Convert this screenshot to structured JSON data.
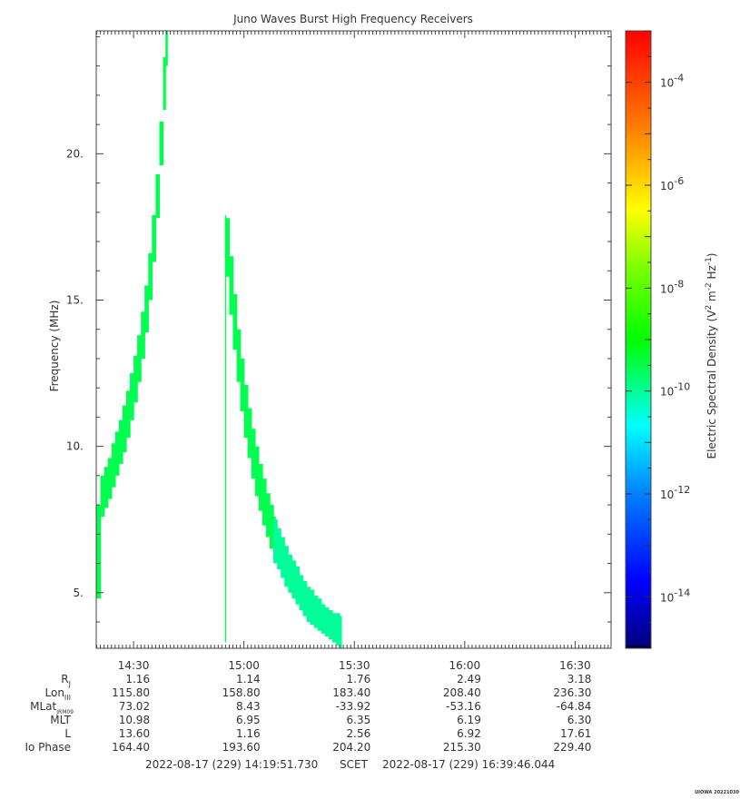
{
  "chart_data": {
    "type": "heatmap",
    "title": "Juno Waves Burst High Frequency Receivers",
    "ylabel": "Frequency (MHz)",
    "ylim": [
      3.1,
      24.2
    ],
    "yticks": [
      "5.",
      "10.",
      "15.",
      "20."
    ],
    "yticks_values": [
      5,
      10,
      15,
      20
    ],
    "xlim": [
      "14:19:51.730",
      "16:39:46.044"
    ],
    "xticks": [
      "14:30",
      "15:00",
      "15:30",
      "16:00",
      "16:30"
    ],
    "colorbar": {
      "label": "Electric Spectral Density (V² m⁻² Hz⁻¹)",
      "label_parts": [
        "Electric Spectral Density (V",
        "2",
        " m",
        "-2",
        " Hz",
        "-1",
        ")"
      ],
      "scale": "log",
      "range": [
        1e-15,
        0.001
      ],
      "ticks": [
        {
          "base": "10",
          "exp": "-4"
        },
        {
          "base": "10",
          "exp": "-6"
        },
        {
          "base": "10",
          "exp": "-8"
        },
        {
          "base": "10",
          "exp": "-10"
        },
        {
          "base": "10",
          "exp": "-12"
        },
        {
          "base": "10",
          "exp": "-14"
        }
      ],
      "tick_values": [
        0.0001,
        1e-06,
        1e-08,
        1e-10,
        1e-12,
        1e-14
      ]
    },
    "series": [
      {
        "color_value": 3e-10,
        "points": [
          {
            "t": "14:19:52",
            "f_low": 4.8,
            "f_high": 8.0
          },
          {
            "t": "14:21:00",
            "f_low": 7.6,
            "f_high": 9.0
          },
          {
            "t": "14:22:00",
            "f_low": 7.9,
            "f_high": 9.3
          },
          {
            "t": "14:23:00",
            "f_low": 8.2,
            "f_high": 9.6
          },
          {
            "t": "14:24:00",
            "f_low": 8.6,
            "f_high": 10.1
          },
          {
            "t": "14:25:00",
            "f_low": 9.0,
            "f_high": 10.5
          },
          {
            "t": "14:26:00",
            "f_low": 9.4,
            "f_high": 10.9
          },
          {
            "t": "14:27:00",
            "f_low": 9.8,
            "f_high": 11.4
          },
          {
            "t": "14:28:00",
            "f_low": 10.3,
            "f_high": 11.9
          },
          {
            "t": "14:29:00",
            "f_low": 10.9,
            "f_high": 12.5
          },
          {
            "t": "14:30:00",
            "f_low": 11.5,
            "f_high": 13.1
          },
          {
            "t": "14:31:00",
            "f_low": 12.2,
            "f_high": 13.8
          },
          {
            "t": "14:32:00",
            "f_low": 13.0,
            "f_high": 14.6
          },
          {
            "t": "14:33:00",
            "f_low": 13.9,
            "f_high": 15.5
          },
          {
            "t": "14:34:00",
            "f_low": 15.0,
            "f_high": 16.6
          },
          {
            "t": "14:35:00",
            "f_low": 16.3,
            "f_high": 17.9
          },
          {
            "t": "14:36:00",
            "f_low": 17.8,
            "f_high": 19.3
          },
          {
            "t": "14:37:00",
            "f_low": 19.6,
            "f_high": 21.1
          },
          {
            "t": "14:38:00",
            "f_low": 21.5,
            "f_high": 23.3
          },
          {
            "t": "14:38:40",
            "f_low": 23.0,
            "f_high": 24.2
          }
        ]
      },
      {
        "color_value": 3e-10,
        "points": [
          {
            "t": "14:54:50",
            "f_low": 3.3,
            "f_high": 17.9
          },
          {
            "t": "14:55:00",
            "f_low": 15.8,
            "f_high": 17.8
          },
          {
            "t": "14:56:00",
            "f_low": 14.5,
            "f_high": 16.5
          },
          {
            "t": "14:57:00",
            "f_low": 13.3,
            "f_high": 15.2
          },
          {
            "t": "14:58:00",
            "f_low": 12.2,
            "f_high": 14.0
          },
          {
            "t": "14:59:00",
            "f_low": 11.2,
            "f_high": 13.0
          },
          {
            "t": "15:00:00",
            "f_low": 10.3,
            "f_high": 12.1
          },
          {
            "t": "15:01:00",
            "f_low": 9.6,
            "f_high": 11.3
          },
          {
            "t": "15:02:00",
            "f_low": 8.9,
            "f_high": 10.6
          },
          {
            "t": "15:03:00",
            "f_low": 8.3,
            "f_high": 10.0
          },
          {
            "t": "15:04:00",
            "f_low": 7.8,
            "f_high": 9.4
          },
          {
            "t": "15:05:00",
            "f_low": 7.3,
            "f_high": 8.9
          },
          {
            "t": "15:06:00",
            "f_low": 6.9,
            "f_high": 8.4
          },
          {
            "t": "15:07:00",
            "f_low": 6.5,
            "f_high": 8.0
          },
          {
            "t": "15:08:00",
            "f_low": 6.2,
            "f_high": 7.6
          }
        ]
      },
      {
        "color_value": 1e-10,
        "points": [
          {
            "t": "15:08:00",
            "f_low": 6.0,
            "f_high": 7.5
          },
          {
            "t": "15:09:00",
            "f_low": 5.8,
            "f_high": 7.2
          },
          {
            "t": "15:10:00",
            "f_low": 5.5,
            "f_high": 6.9
          },
          {
            "t": "15:11:00",
            "f_low": 5.2,
            "f_high": 6.6
          },
          {
            "t": "15:12:00",
            "f_low": 5.0,
            "f_high": 6.3
          },
          {
            "t": "15:13:00",
            "f_low": 4.8,
            "f_high": 6.1
          },
          {
            "t": "15:14:00",
            "f_low": 4.6,
            "f_high": 5.9
          },
          {
            "t": "15:15:00",
            "f_low": 4.4,
            "f_high": 5.6
          },
          {
            "t": "15:16:00",
            "f_low": 4.2,
            "f_high": 5.4
          },
          {
            "t": "15:17:00",
            "f_low": 4.0,
            "f_high": 5.2
          },
          {
            "t": "15:18:00",
            "f_low": 3.9,
            "f_high": 5.1
          },
          {
            "t": "15:19:00",
            "f_low": 3.8,
            "f_high": 4.9
          },
          {
            "t": "15:20:00",
            "f_low": 3.7,
            "f_high": 4.8
          },
          {
            "t": "15:21:00",
            "f_low": 3.6,
            "f_high": 4.6
          },
          {
            "t": "15:22:00",
            "f_low": 3.5,
            "f_high": 4.5
          },
          {
            "t": "15:23:00",
            "f_low": 3.4,
            "f_high": 4.4
          },
          {
            "t": "15:24:00",
            "f_low": 3.3,
            "f_high": 4.3
          },
          {
            "t": "15:25:00",
            "f_low": 3.2,
            "f_high": 4.3
          },
          {
            "t": "15:26:00",
            "f_low": 3.1,
            "f_high": 4.2
          }
        ]
      }
    ]
  },
  "ephemeris": {
    "rows": [
      {
        "label": "R",
        "sub": "J",
        "values": [
          "1.16",
          "1.14",
          "1.76",
          "2.49",
          "3.18"
        ]
      },
      {
        "label": "Lon",
        "sub": "III",
        "values": [
          "115.80",
          "158.80",
          "183.40",
          "208.40",
          "236.30"
        ]
      },
      {
        "label": "MLat",
        "sub": "JRM09",
        "values": [
          "73.02",
          "8.43",
          "-33.92",
          "-53.16",
          "-64.84"
        ]
      },
      {
        "label": "MLT",
        "sub": "",
        "values": [
          "10.98",
          "6.95",
          "6.35",
          "6.19",
          "6.30"
        ]
      },
      {
        "label": "L",
        "sub": "",
        "values": [
          "13.60",
          "1.16",
          "2.56",
          "6.92",
          "17.61"
        ]
      },
      {
        "label": "Io Phase",
        "sub": "",
        "values": [
          "164.40",
          "193.60",
          "204.20",
          "215.30",
          "229.40"
        ]
      }
    ]
  },
  "footer": {
    "start": "2022-08-17 (229) 14:19:51.730",
    "scet": "SCET",
    "end": "2022-08-17 (229) 16:39:46.044",
    "stamp": "UIOWA 20221030"
  }
}
